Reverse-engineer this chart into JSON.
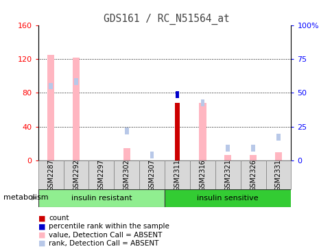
{
  "title": "GDS161 / RC_N51564_at",
  "samples": [
    "GSM2287",
    "GSM2292",
    "GSM2297",
    "GSM2302",
    "GSM2307",
    "GSM2311",
    "GSM2316",
    "GSM2321",
    "GSM2326",
    "GSM2331"
  ],
  "groups": [
    {
      "label": "insulin resistant",
      "color": "#90EE90",
      "n": 5
    },
    {
      "label": "insulin sensitive",
      "color": "#33CC33",
      "n": 5
    }
  ],
  "value_absent": [
    125,
    122,
    0,
    15,
    0,
    0,
    68,
    7,
    7,
    10
  ],
  "rank_absent": [
    88,
    93,
    0,
    35,
    7,
    0,
    68,
    15,
    15,
    28
  ],
  "count": [
    0,
    0,
    0,
    0,
    0,
    68,
    0,
    0,
    0,
    0
  ],
  "percentile_rank": [
    0,
    0,
    0,
    0,
    0,
    78,
    0,
    0,
    0,
    0
  ],
  "ylim_left": [
    0,
    160
  ],
  "ylim_right": [
    0,
    100
  ],
  "yticks_left": [
    0,
    40,
    80,
    120,
    160
  ],
  "yticks_right": [
    0,
    25,
    50,
    75,
    100
  ],
  "ytick_labels_right": [
    "0",
    "25",
    "50",
    "75",
    "100%"
  ],
  "color_value_absent": "#FFB6C1",
  "color_rank_absent": "#B8C8E8",
  "color_count": "#CC0000",
  "color_percentile": "#0000CC",
  "bg_color": "#FFFFFF",
  "legend_items": [
    {
      "color": "#CC0000",
      "label": "count"
    },
    {
      "color": "#0000CC",
      "label": "percentile rank within the sample"
    },
    {
      "color": "#FFB6C1",
      "label": "value, Detection Call = ABSENT"
    },
    {
      "color": "#B8C8E8",
      "label": "rank, Detection Call = ABSENT"
    }
  ]
}
